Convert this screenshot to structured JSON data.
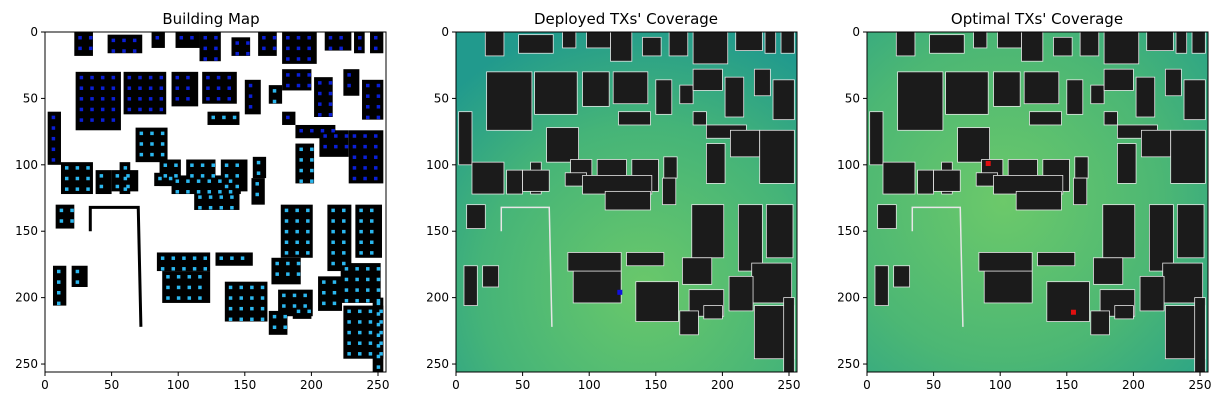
{
  "colors": {
    "building": "#000000",
    "map_background": "#ffffff",
    "building_marker_dark": "#0a1fd6",
    "building_marker_light": "#2bb7ef",
    "coverage_low": "#1f9b8f",
    "coverage_high": "#62c46c",
    "building_overlay": "#1b1b1b",
    "building_outline": "#e6e6e6",
    "deployed_tx": "#1010e0",
    "optimal_tx": "#e01010"
  },
  "chart_data": [
    {
      "type": "heatmap",
      "title": "Building Map",
      "xlabel": "",
      "ylabel": "",
      "xlim": [
        0,
        256
      ],
      "ylim": [
        256,
        0
      ],
      "x_ticks": [
        0,
        50,
        100,
        150,
        200,
        250
      ],
      "y_ticks": [
        0,
        50,
        100,
        150,
        200,
        250
      ]
    },
    {
      "type": "heatmap",
      "title": "Deployed TXs' Coverage",
      "xlabel": "",
      "ylabel": "",
      "xlim": [
        0,
        256
      ],
      "ylim": [
        256,
        0
      ],
      "x_ticks": [
        0,
        50,
        100,
        150,
        200,
        250
      ],
      "y_ticks": [
        0,
        50,
        100,
        150,
        200,
        250
      ],
      "transmitters": [
        {
          "x": 123,
          "y": 196
        }
      ]
    },
    {
      "type": "heatmap",
      "title": "Optimal TXs' Coverage",
      "xlabel": "",
      "ylabel": "",
      "xlim": [
        0,
        256
      ],
      "ylim": [
        256,
        0
      ],
      "x_ticks": [
        0,
        50,
        100,
        150,
        200,
        250
      ],
      "y_ticks": [
        0,
        50,
        100,
        150,
        200,
        250
      ],
      "transmitters": [
        {
          "x": 91,
          "y": 99
        },
        {
          "x": 155,
          "y": 211
        }
      ]
    }
  ]
}
